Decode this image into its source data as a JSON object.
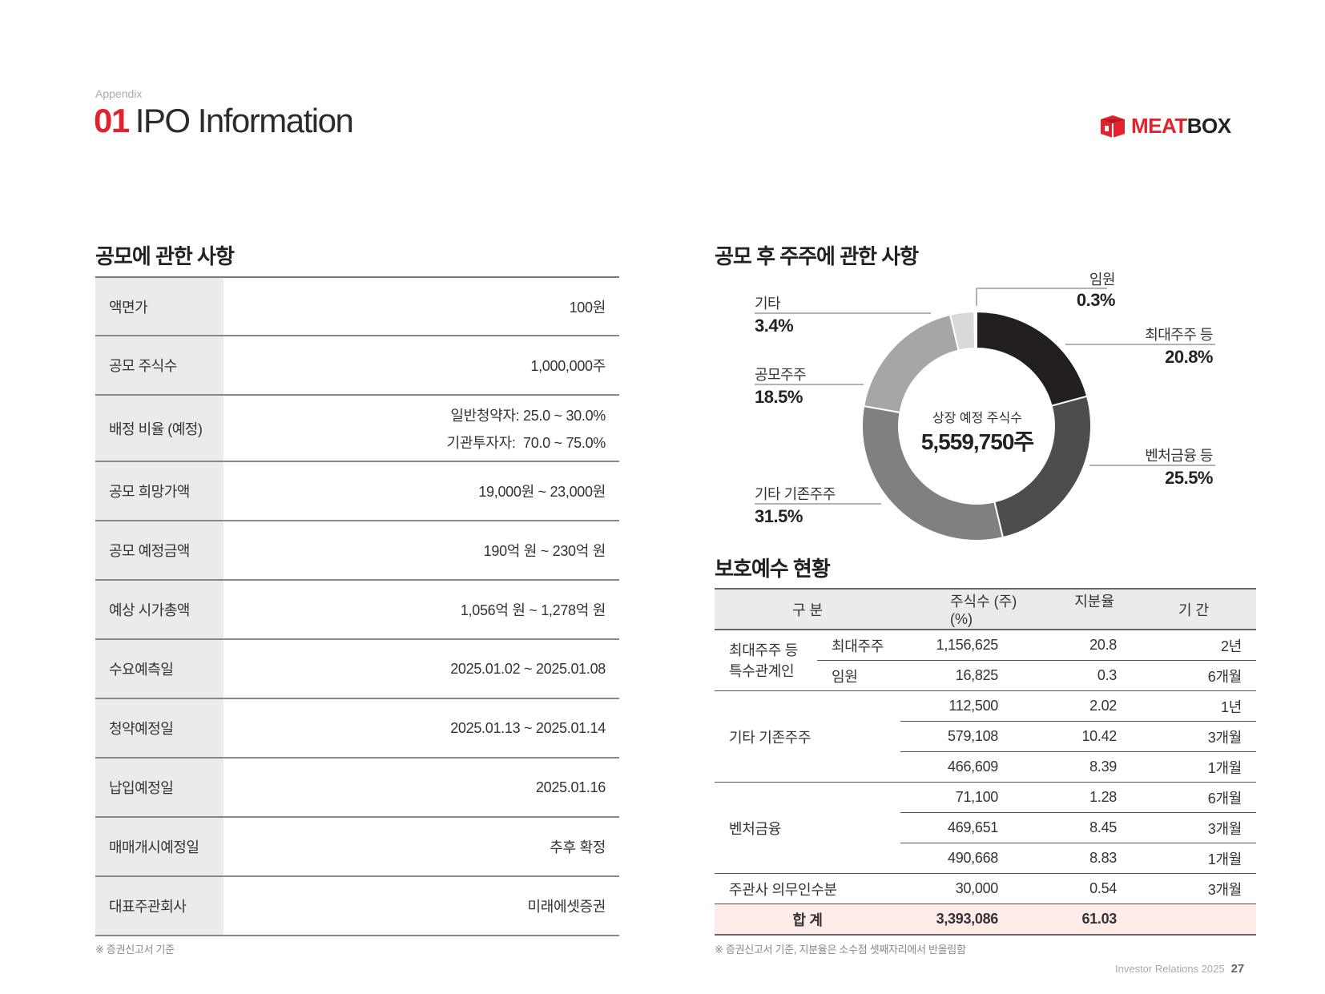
{
  "header": {
    "appendix": "Appendix",
    "title_num": "01",
    "title_text": "IPO Information",
    "logo_meat": "MEAT",
    "logo_box": "BOX"
  },
  "offering": {
    "title": "공모에 관한 사항",
    "rows": [
      {
        "label": "액면가",
        "value": "100원"
      },
      {
        "label": "공모 주식수",
        "value": "1,000,000주"
      },
      {
        "label": "배정 비율 (예정)",
        "value": "일반청약자: 25.0 ~ 30.0%",
        "value2": "기관투자자:  70.0 ~ 75.0%"
      },
      {
        "label": "공모 희망가액",
        "value": "19,000원 ~ 23,000원"
      },
      {
        "label": "공모 예정금액",
        "value": "190억 원 ~ 230억 원"
      },
      {
        "label": "예상 시가총액",
        "value": "1,056억 원 ~ 1,278억 원"
      },
      {
        "label": "수요예측일",
        "value": "2025.01.02 ~ 2025.01.08"
      },
      {
        "label": "청약예정일",
        "value": "2025.01.13 ~ 2025.01.14"
      },
      {
        "label": "납입예정일",
        "value": "2025.01.16"
      },
      {
        "label": "매매개시예정일",
        "value": "추후 확정"
      },
      {
        "label": "대표주관회사",
        "value": "미래에셋증권"
      }
    ],
    "note": "※ 증권신고서 기준"
  },
  "shareholders": {
    "title": "공모 후 주주에 관한 사항",
    "center_label": "상장 예정 주식수",
    "center_value": "5,559,750주"
  },
  "chart_data": {
    "type": "pie",
    "categories": [
      "최대주주 등",
      "벤처금융 등",
      "기타 기존주주",
      "공모주주",
      "기타",
      "임원"
    ],
    "values": [
      20.8,
      25.5,
      31.5,
      18.5,
      3.4,
      0.3
    ],
    "labels": [
      "20.8%",
      "25.5%",
      "31.5%",
      "18.5%",
      "3.4%",
      "0.3%"
    ],
    "colors": [
      "#231f20",
      "#4d4d4d",
      "#808080",
      "#a6a6a6",
      "#d9d9d9",
      "#ffffff"
    ]
  },
  "lockup": {
    "title": "보호예수 현황",
    "headers": [
      "구 분",
      "주식수 (주)",
      "지분율 (%)",
      "기 간"
    ],
    "group1": "최대주주 등 특수관계인",
    "group1_line1": "최대주주 등",
    "group1_line2": "특수관계인",
    "group1_rows": [
      {
        "sub": "최대주주",
        "shares": "1,156,625",
        "ratio": "20.8",
        "period": "2년"
      },
      {
        "sub": "임원",
        "shares": "16,825",
        "ratio": "0.3",
        "period": "6개월"
      }
    ],
    "group2": "기타 기존주주",
    "group2_rows": [
      {
        "shares": "112,500",
        "ratio": "2.02",
        "period": "1년"
      },
      {
        "shares": "579,108",
        "ratio": "10.42",
        "period": "3개월"
      },
      {
        "shares": "466,609",
        "ratio": "8.39",
        "period": "1개월"
      }
    ],
    "group3": "벤처금융",
    "group3_rows": [
      {
        "shares": "71,100",
        "ratio": "1.28",
        "period": "6개월"
      },
      {
        "shares": "469,651",
        "ratio": "8.45",
        "period": "3개월"
      },
      {
        "shares": "490,668",
        "ratio": "8.83",
        "period": "1개월"
      }
    ],
    "group4": {
      "label": "주관사 의무인수분",
      "shares": "30,000",
      "ratio": "0.54",
      "period": "3개월"
    },
    "total": {
      "label": "합 계",
      "shares": "3,393,086",
      "ratio": "61.03"
    },
    "note": "※ 증권신고서 기준, 지분율은 소수점 셋째자리에서 반올림함"
  },
  "footer": {
    "text": "Investor Relations 2025",
    "page": "27"
  }
}
